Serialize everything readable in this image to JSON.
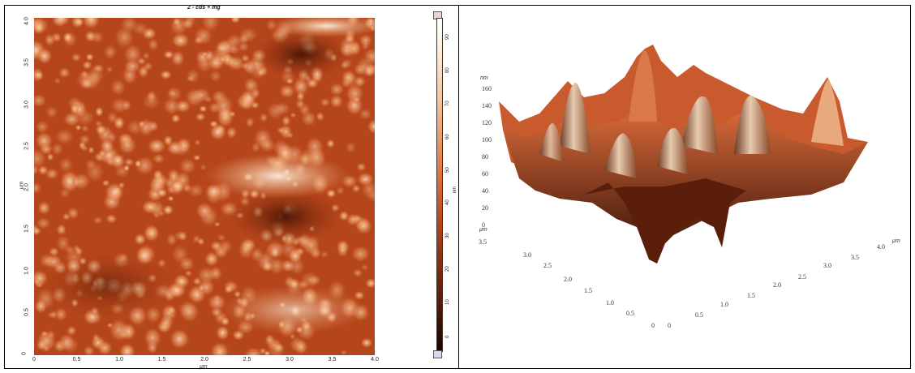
{
  "map2d": {
    "title": "2 - cds + mg",
    "x_ticks": [
      "0",
      "0.5",
      "1.0",
      "1.5",
      "2.0",
      "2.5",
      "3.0",
      "3.5",
      "4.0"
    ],
    "y_ticks": [
      "0",
      "0.5",
      "1.0",
      "1.5",
      "2.0",
      "2.5",
      "3.0",
      "3.5",
      "4.0"
    ],
    "x_unit": "μm",
    "y_unit": "μm"
  },
  "colorbar": {
    "ticks": [
      "90",
      "80",
      "70",
      "60",
      "50",
      "40",
      "30",
      "20",
      "10",
      "0"
    ],
    "unit": "nm"
  },
  "view3d": {
    "z_unit": "nm",
    "z_ticks": [
      "160",
      "140",
      "120",
      "100",
      "80",
      "60",
      "40",
      "20",
      "0"
    ],
    "left_axis_ticks": [
      "3.5",
      "3.0",
      "2.5",
      "2.0",
      "1.5",
      "1.0",
      "0.5",
      "0"
    ],
    "right_axis_ticks": [
      "0",
      "0.5",
      "1.0",
      "1.5",
      "2.0",
      "2.5",
      "3.0",
      "3.5",
      "4.0"
    ],
    "axis_unit_left": "μm",
    "axis_unit_right": "μm"
  }
}
